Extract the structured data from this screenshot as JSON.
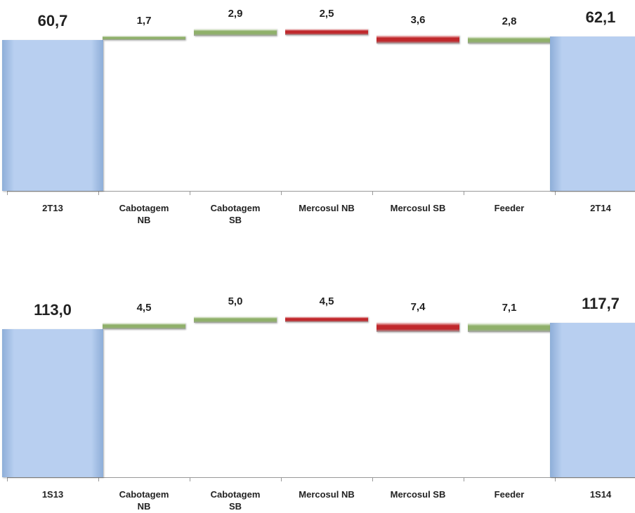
{
  "chart_data": [
    {
      "type": "waterfall",
      "categories": [
        "2T13",
        "Cabotagem NB",
        "Cabotagem SB",
        "Mercosul NB",
        "Mercosul SB",
        "Feeder",
        "2T14"
      ],
      "values": [
        60.7,
        1.7,
        2.9,
        -2.5,
        -3.6,
        2.8,
        62.1
      ],
      "value_labels": [
        "60,7",
        "1,7",
        "2,9",
        "2,5",
        "3,6",
        "2,8",
        "62,1"
      ],
      "colors": {
        "total": "#b8cff0",
        "increase": "#8fb06a",
        "decrease": "#c0282c"
      }
    },
    {
      "type": "waterfall",
      "categories": [
        "1S13",
        "Cabotagem NB",
        "Cabotagem SB",
        "Mercosul NB",
        "Mercosul SB",
        "Feeder",
        "1S14"
      ],
      "values": [
        113.0,
        4.5,
        5.0,
        -4.5,
        -7.4,
        7.1,
        117.7
      ],
      "value_labels": [
        "113,0",
        "4,5",
        "5,0",
        "4,5",
        "7,4",
        "7,1",
        "117,7"
      ],
      "colors": {
        "total": "#b8cff0",
        "increase": "#8fb06a",
        "decrease": "#c0282c"
      }
    }
  ]
}
